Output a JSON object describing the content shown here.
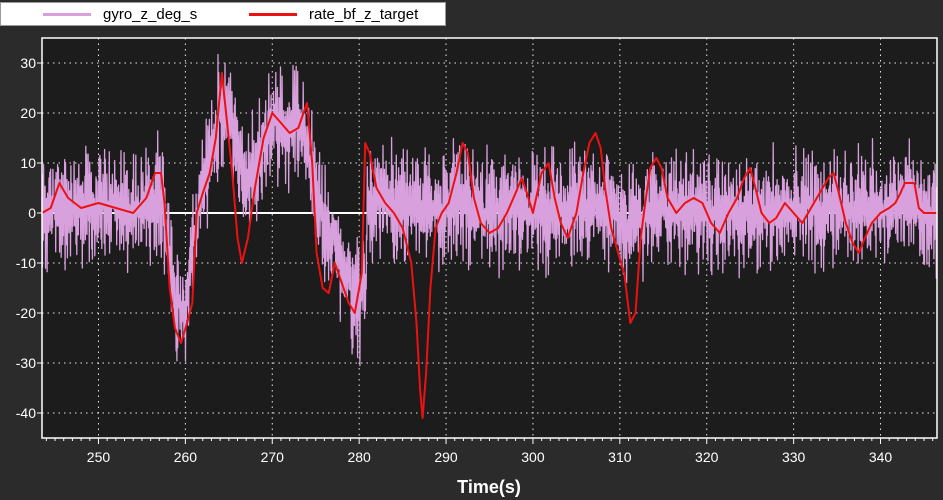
{
  "chart_data": {
    "type": "line",
    "title": "",
    "xlabel": "Time(s)",
    "ylabel": "",
    "xlim": [
      243.5,
      346.5
    ],
    "ylim": [
      -45,
      35
    ],
    "xticks": [
      250,
      260,
      270,
      280,
      290,
      300,
      310,
      320,
      330,
      340
    ],
    "yticks": [
      30,
      20,
      10,
      0,
      -10,
      -20,
      -30,
      -40
    ],
    "grid": true,
    "legend_position": "top-left",
    "background": "#1c1c1c",
    "series": [
      {
        "name": "gyro_z_deg_s",
        "color": "#d8a0dc",
        "noise": 7,
        "points": [
          [
            243.5,
            0
          ],
          [
            246,
            1
          ],
          [
            248,
            2
          ],
          [
            250,
            1
          ],
          [
            252,
            2
          ],
          [
            254,
            1
          ],
          [
            256,
            3
          ],
          [
            257.5,
            2
          ],
          [
            258,
            -8
          ],
          [
            259,
            -18
          ],
          [
            260,
            -20
          ],
          [
            261,
            -5
          ],
          [
            262,
            5
          ],
          [
            263,
            12
          ],
          [
            264,
            20
          ],
          [
            265,
            22
          ],
          [
            266,
            12
          ],
          [
            267,
            5
          ],
          [
            268,
            8
          ],
          [
            269,
            15
          ],
          [
            270,
            18
          ],
          [
            271,
            17
          ],
          [
            272,
            16
          ],
          [
            273,
            18
          ],
          [
            274,
            14
          ],
          [
            275,
            5
          ],
          [
            276,
            -2
          ],
          [
            277,
            -5
          ],
          [
            278,
            -10
          ],
          [
            279,
            -15
          ],
          [
            280,
            -18
          ],
          [
            280.8,
            -12
          ],
          [
            281,
            2
          ],
          [
            283,
            2
          ],
          [
            285,
            2
          ],
          [
            287,
            1
          ],
          [
            289,
            0
          ],
          [
            291,
            3
          ],
          [
            293,
            1
          ],
          [
            295,
            0
          ],
          [
            297,
            2
          ],
          [
            299,
            0
          ],
          [
            301,
            1
          ],
          [
            303,
            0
          ],
          [
            305,
            1
          ],
          [
            307,
            2
          ],
          [
            309,
            0
          ],
          [
            311,
            -3
          ],
          [
            313,
            0
          ],
          [
            315,
            1
          ],
          [
            317,
            0
          ],
          [
            319,
            1
          ],
          [
            321,
            0
          ],
          [
            323,
            1
          ],
          [
            325,
            0
          ],
          [
            327,
            1
          ],
          [
            329,
            0
          ],
          [
            331,
            2
          ],
          [
            333,
            0
          ],
          [
            335,
            1
          ],
          [
            337,
            0
          ],
          [
            339,
            1
          ],
          [
            341,
            0
          ],
          [
            342,
            2
          ],
          [
            343,
            3
          ],
          [
            344,
            0
          ],
          [
            346.5,
            0
          ]
        ]
      },
      {
        "name": "rate_bf_z_target",
        "color": "#ee1111",
        "points": [
          [
            243.5,
            0
          ],
          [
            244.5,
            1
          ],
          [
            245.5,
            6
          ],
          [
            246.5,
            3
          ],
          [
            248,
            1
          ],
          [
            250,
            2
          ],
          [
            252,
            1
          ],
          [
            254,
            0
          ],
          [
            255.5,
            3
          ],
          [
            256.5,
            8
          ],
          [
            257.2,
            8
          ],
          [
            257.6,
            2
          ],
          [
            258.2,
            -15
          ],
          [
            258.8,
            -23
          ],
          [
            259.5,
            -26
          ],
          [
            260.2,
            -22
          ],
          [
            260.8,
            -18
          ],
          [
            261.3,
            0
          ],
          [
            262,
            4
          ],
          [
            262.8,
            8
          ],
          [
            263.5,
            15
          ],
          [
            264.2,
            28
          ],
          [
            264.8,
            18
          ],
          [
            265.4,
            8
          ],
          [
            266,
            -5
          ],
          [
            266.5,
            -10
          ],
          [
            267.2,
            -5
          ],
          [
            268,
            5
          ],
          [
            269,
            15
          ],
          [
            270,
            20
          ],
          [
            271,
            18
          ],
          [
            272,
            16
          ],
          [
            273,
            17
          ],
          [
            274,
            22
          ],
          [
            274.6,
            10
          ],
          [
            275.1,
            -8
          ],
          [
            275.8,
            -15
          ],
          [
            276.5,
            -16
          ],
          [
            277.2,
            -10
          ],
          [
            278,
            -14
          ],
          [
            278.8,
            -18
          ],
          [
            279.5,
            -20
          ],
          [
            280.3,
            -12
          ],
          [
            280.7,
            14
          ],
          [
            281.2,
            12
          ],
          [
            282,
            5
          ],
          [
            283,
            2
          ],
          [
            284,
            0
          ],
          [
            285,
            -3
          ],
          [
            286,
            -10
          ],
          [
            286.6,
            -22
          ],
          [
            287,
            -35
          ],
          [
            287.3,
            -41
          ],
          [
            287.7,
            -32
          ],
          [
            288.2,
            -15
          ],
          [
            288.8,
            -3
          ],
          [
            289.5,
            0
          ],
          [
            290.3,
            2
          ],
          [
            291.2,
            8
          ],
          [
            291.9,
            14
          ],
          [
            292.5,
            12
          ],
          [
            293.2,
            3
          ],
          [
            294,
            -2
          ],
          [
            295,
            -4
          ],
          [
            296,
            -3
          ],
          [
            297,
            0
          ],
          [
            298,
            4
          ],
          [
            298.7,
            7
          ],
          [
            299.3,
            4
          ],
          [
            300,
            0
          ],
          [
            301,
            8
          ],
          [
            301.8,
            10
          ],
          [
            302.5,
            3
          ],
          [
            303.2,
            -2
          ],
          [
            304,
            -5
          ],
          [
            305,
            0
          ],
          [
            305.8,
            8
          ],
          [
            306.5,
            14
          ],
          [
            307.2,
            16
          ],
          [
            307.8,
            13
          ],
          [
            308.3,
            5
          ],
          [
            309,
            -3
          ],
          [
            309.8,
            -8
          ],
          [
            310.5,
            -12
          ],
          [
            311.2,
            -22
          ],
          [
            311.8,
            -20
          ],
          [
            312.4,
            -5
          ],
          [
            313,
            3
          ],
          [
            313.5,
            9
          ],
          [
            314.2,
            11
          ],
          [
            314.8,
            9
          ],
          [
            315.5,
            3
          ],
          [
            316.5,
            0
          ],
          [
            317.5,
            2
          ],
          [
            318.5,
            3
          ],
          [
            319.5,
            2
          ],
          [
            320.5,
            -2
          ],
          [
            321.5,
            -4
          ],
          [
            322.5,
            0
          ],
          [
            323.5,
            3
          ],
          [
            324.3,
            7
          ],
          [
            325,
            9
          ],
          [
            325.6,
            5
          ],
          [
            326.3,
            0
          ],
          [
            327.2,
            -2
          ],
          [
            328,
            -1
          ],
          [
            329,
            2
          ],
          [
            330,
            0
          ],
          [
            331,
            -2
          ],
          [
            332,
            1
          ],
          [
            333,
            4
          ],
          [
            334,
            7
          ],
          [
            334.6,
            8
          ],
          [
            335.2,
            4
          ],
          [
            336,
            -2
          ],
          [
            336.8,
            -6
          ],
          [
            337.5,
            -8
          ],
          [
            338.2,
            -5
          ],
          [
            339,
            -2
          ],
          [
            340,
            0
          ],
          [
            341,
            1
          ],
          [
            341.7,
            2
          ],
          [
            342.3,
            4
          ],
          [
            342.8,
            6
          ],
          [
            343.3,
            6
          ],
          [
            343.9,
            6
          ],
          [
            344.4,
            1
          ],
          [
            345,
            0
          ],
          [
            346.5,
            0
          ]
        ]
      }
    ]
  }
}
